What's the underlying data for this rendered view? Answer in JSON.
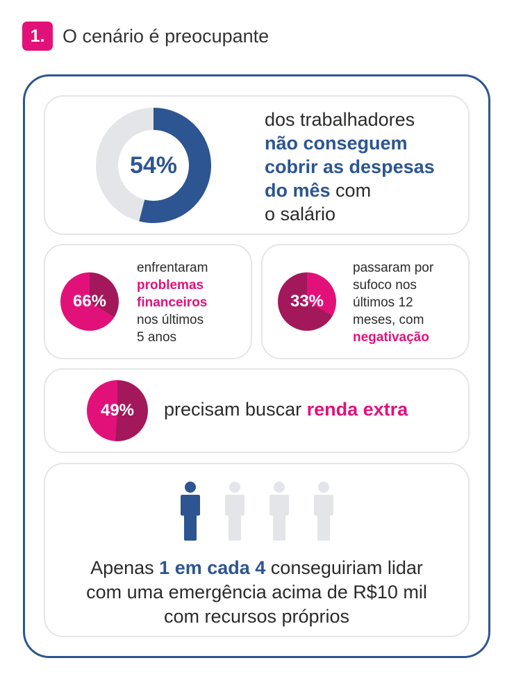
{
  "header": {
    "number": "1.",
    "title": "O cenário é preocupante"
  },
  "stat_main": {
    "value_label": "54%",
    "value": 54,
    "text_1": "dos trabalhadores",
    "text_highlight": "não conseguem cobrir as despesas do mês",
    "text_2": "com",
    "text_3": "o salário"
  },
  "stat_problems": {
    "value_label": "66%",
    "value": 66,
    "text_1": "enfrentaram",
    "highlight_1": "problemas",
    "highlight_2": "financeiros",
    "text_2": "nos últimos",
    "text_3": "5 anos"
  },
  "stat_sufoco": {
    "value_label": "33%",
    "value": 33,
    "text_1": "passaram por",
    "text_2": "sufoco nos",
    "text_3": "últimos 12",
    "text_4": "meses, com",
    "highlight": "negativação"
  },
  "stat_extra": {
    "value_label": "49%",
    "value": 49,
    "text": "precisam buscar",
    "highlight": "renda extra"
  },
  "stat_emergency": {
    "people_total": 4,
    "people_highlighted": 1,
    "text_1": "Apenas",
    "highlight": "1 em cada 4",
    "text_2": "conseguiriam lidar",
    "text_3": "com uma emergência acima de R$10 mil",
    "text_4": "com recursos próprios"
  },
  "colors": {
    "blue": "#2c5591",
    "pink": "#e2117a",
    "dark_pink": "#a3185a",
    "gray": "#e4e5e9"
  }
}
